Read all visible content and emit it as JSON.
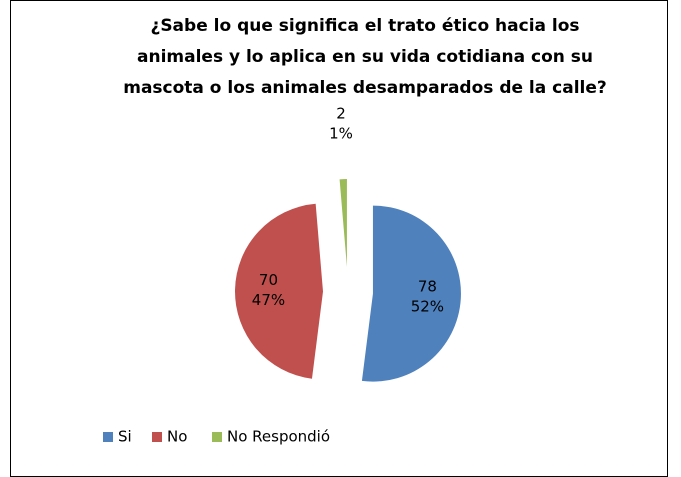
{
  "chart_data": {
    "type": "pie",
    "title": [
      "¿Sabe lo que significa el trato ético hacia los",
      "animales y lo aplica en su vida cotidiana con su",
      "mascota o los animales desamparados de la calle?"
    ],
    "categories": [
      "Si",
      "No",
      "No Respondió"
    ],
    "values": [
      78,
      70,
      2
    ],
    "percent_labels": [
      "52%",
      "47%",
      "1%"
    ],
    "colors": [
      "#4f81bd",
      "#c0504d",
      "#9bbb59"
    ],
    "exploded": true,
    "legend": "bottom"
  }
}
